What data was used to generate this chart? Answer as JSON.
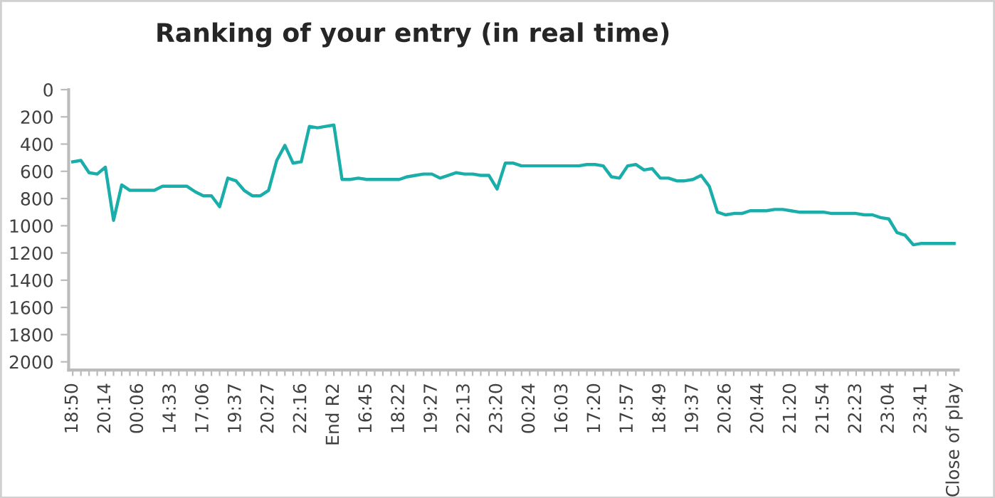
{
  "chart_data": {
    "type": "line",
    "title": "Ranking of your entry (in real time)",
    "categories": [
      "18:50",
      null,
      null,
      null,
      "20:14",
      null,
      null,
      null,
      "00:06",
      null,
      null,
      null,
      "14:33",
      null,
      null,
      null,
      "17:06",
      null,
      null,
      null,
      "19:37",
      null,
      null,
      null,
      "20:27",
      null,
      null,
      null,
      "22:16",
      null,
      null,
      null,
      "End R2",
      null,
      null,
      null,
      "16:45",
      null,
      null,
      null,
      "18:22",
      null,
      null,
      null,
      "19:27",
      null,
      null,
      null,
      "22:13",
      null,
      null,
      null,
      "23:20",
      null,
      null,
      null,
      "00:24",
      null,
      null,
      null,
      "16:03",
      null,
      null,
      null,
      "17:20",
      null,
      null,
      null,
      "17:57",
      null,
      null,
      null,
      "18:49",
      null,
      null,
      null,
      "19:37",
      null,
      null,
      null,
      "20:26",
      null,
      null,
      null,
      "20:44",
      null,
      null,
      null,
      "21:20",
      null,
      null,
      null,
      "21:54",
      null,
      null,
      null,
      "22:23",
      null,
      null,
      null,
      "23:04",
      null,
      null,
      null,
      "23:41",
      null,
      null,
      null,
      "Close of play"
    ],
    "series": [
      {
        "color": "#1aaeaa",
        "values": [
          530,
          520,
          610,
          620,
          570,
          960,
          700,
          740,
          740,
          740,
          740,
          710,
          710,
          710,
          710,
          750,
          780,
          780,
          860,
          650,
          670,
          740,
          780,
          780,
          740,
          520,
          410,
          540,
          530,
          270,
          280,
          270,
          260,
          660,
          660,
          650,
          660,
          660,
          660,
          660,
          660,
          640,
          630,
          620,
          620,
          650,
          630,
          610,
          620,
          620,
          630,
          630,
          730,
          540,
          540,
          560,
          560,
          560,
          560,
          560,
          560,
          560,
          560,
          550,
          550,
          560,
          640,
          650,
          560,
          550,
          590,
          580,
          650,
          650,
          670,
          670,
          660,
          630,
          710,
          900,
          920,
          910,
          910,
          890,
          890,
          890,
          880,
          880,
          890,
          900,
          900,
          900,
          900,
          910,
          910,
          910,
          910,
          920,
          920,
          940,
          950,
          1050,
          1070,
          1140,
          1130,
          1130,
          1130,
          1130,
          1130
        ]
      }
    ],
    "ylim": [
      2060,
      0
    ],
    "yticks": [
      0,
      200,
      400,
      600,
      800,
      1000,
      1200,
      1400,
      1600,
      1800,
      2000
    ],
    "grid": false,
    "marker": "none",
    "line_style": "solid"
  }
}
